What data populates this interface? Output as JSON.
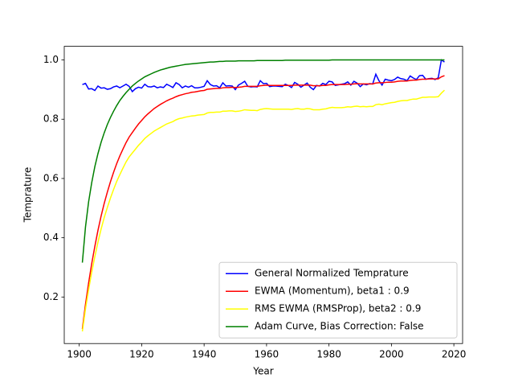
{
  "chart_data": {
    "type": "line",
    "x_label": "Year",
    "y_label": "Temprature",
    "legend_position": "lower right",
    "xlim": [
      1895.2,
      2022.8
    ],
    "ylim": [
      0.043,
      1.046
    ],
    "xticks": [
      1900,
      1920,
      1940,
      1960,
      1980,
      2000,
      2020
    ],
    "yticks": [
      0.2,
      0.4,
      0.6,
      0.8,
      {
        "value": 1,
        "label": "1.0"
      }
    ],
    "x": [
      1901,
      1902,
      1903,
      1904,
      1905,
      1906,
      1907,
      1908,
      1909,
      1910,
      1911,
      1912,
      1913,
      1914,
      1915,
      1916,
      1917,
      1918,
      1919,
      1920,
      1921,
      1922,
      1923,
      1924,
      1925,
      1926,
      1927,
      1928,
      1929,
      1930,
      1931,
      1932,
      1933,
      1934,
      1935,
      1936,
      1937,
      1938,
      1939,
      1940,
      1941,
      1942,
      1943,
      1944,
      1945,
      1946,
      1947,
      1948,
      1949,
      1950,
      1951,
      1952,
      1953,
      1954,
      1955,
      1956,
      1957,
      1958,
      1959,
      1960,
      1961,
      1962,
      1963,
      1964,
      1965,
      1966,
      1967,
      1968,
      1969,
      1970,
      1971,
      1972,
      1973,
      1974,
      1975,
      1976,
      1977,
      1978,
      1979,
      1980,
      1981,
      1982,
      1983,
      1984,
      1985,
      1986,
      1987,
      1988,
      1989,
      1990,
      1991,
      1992,
      1993,
      1994,
      1995,
      1996,
      1997,
      1998,
      1999,
      2000,
      2001,
      2002,
      2003,
      2004,
      2005,
      2006,
      2007,
      2008,
      2009,
      2010,
      2011,
      2012,
      2013,
      2014,
      2015,
      2016,
      2017
    ],
    "series": [
      {
        "name": "General Normalized Temprature",
        "color": "#0000ff",
        "values": [
          0.917,
          0.921,
          0.902,
          0.903,
          0.897,
          0.912,
          0.905,
          0.906,
          0.901,
          0.903,
          0.909,
          0.912,
          0.906,
          0.912,
          0.918,
          0.911,
          0.893,
          0.903,
          0.908,
          0.905,
          0.918,
          0.91,
          0.909,
          0.912,
          0.906,
          0.909,
          0.907,
          0.918,
          0.913,
          0.907,
          0.923,
          0.917,
          0.906,
          0.912,
          0.908,
          0.913,
          0.906,
          0.906,
          0.908,
          0.911,
          0.93,
          0.917,
          0.912,
          0.913,
          0.906,
          0.923,
          0.912,
          0.913,
          0.912,
          0.9,
          0.915,
          0.921,
          0.928,
          0.911,
          0.909,
          0.91,
          0.909,
          0.93,
          0.92,
          0.921,
          0.91,
          0.912,
          0.912,
          0.911,
          0.91,
          0.918,
          0.914,
          0.907,
          0.924,
          0.918,
          0.908,
          0.915,
          0.922,
          0.908,
          0.9,
          0.914,
          0.912,
          0.921,
          0.917,
          0.928,
          0.926,
          0.914,
          0.916,
          0.918,
          0.92,
          0.926,
          0.915,
          0.928,
          0.922,
          0.91,
          0.919,
          0.916,
          0.92,
          0.919,
          0.952,
          0.93,
          0.915,
          0.935,
          0.932,
          0.93,
          0.934,
          0.942,
          0.937,
          0.935,
          0.93,
          0.946,
          0.939,
          0.934,
          0.947,
          0.948,
          0.935,
          0.937,
          0.938,
          0.934,
          0.94,
          1.0,
          0.993
        ]
      },
      {
        "name": "EWMA (Momentum), beta1 : 0.9",
        "color": "#ff0000",
        "values": [
          0.092,
          0.175,
          0.247,
          0.313,
          0.371,
          0.425,
          0.473,
          0.516,
          0.554,
          0.589,
          0.621,
          0.65,
          0.676,
          0.699,
          0.721,
          0.74,
          0.755,
          0.77,
          0.784,
          0.796,
          0.808,
          0.818,
          0.827,
          0.836,
          0.843,
          0.85,
          0.856,
          0.862,
          0.867,
          0.871,
          0.876,
          0.88,
          0.883,
          0.886,
          0.888,
          0.891,
          0.892,
          0.894,
          0.896,
          0.897,
          0.901,
          0.902,
          0.903,
          0.904,
          0.904,
          0.906,
          0.907,
          0.907,
          0.908,
          0.907,
          0.908,
          0.909,
          0.911,
          0.911,
          0.911,
          0.911,
          0.911,
          0.913,
          0.914,
          0.915,
          0.914,
          0.914,
          0.914,
          0.914,
          0.914,
          0.914,
          0.914,
          0.914,
          0.915,
          0.915,
          0.915,
          0.915,
          0.915,
          0.915,
          0.913,
          0.913,
          0.913,
          0.914,
          0.914,
          0.916,
          0.917,
          0.917,
          0.917,
          0.917,
          0.917,
          0.918,
          0.918,
          0.919,
          0.92,
          0.919,
          0.919,
          0.919,
          0.919,
          0.919,
          0.922,
          0.923,
          0.923,
          0.924,
          0.925,
          0.925,
          0.926,
          0.928,
          0.929,
          0.929,
          0.929,
          0.931,
          0.932,
          0.932,
          0.934,
          0.935,
          0.935,
          0.936,
          0.936,
          0.936,
          0.936,
          0.943,
          0.947
        ]
      },
      {
        "name": "RMS EWMA (RMSProp), beta2 : 0.9",
        "color": "#ffff00",
        "values": [
          0.084,
          0.16,
          0.225,
          0.284,
          0.336,
          0.385,
          0.429,
          0.468,
          0.502,
          0.534,
          0.563,
          0.59,
          0.613,
          0.635,
          0.656,
          0.673,
          0.686,
          0.699,
          0.712,
          0.723,
          0.735,
          0.744,
          0.752,
          0.76,
          0.766,
          0.772,
          0.778,
          0.784,
          0.788,
          0.792,
          0.798,
          0.802,
          0.804,
          0.807,
          0.809,
          0.811,
          0.812,
          0.814,
          0.815,
          0.816,
          0.821,
          0.823,
          0.823,
          0.824,
          0.824,
          0.827,
          0.827,
          0.828,
          0.828,
          0.826,
          0.827,
          0.829,
          0.832,
          0.831,
          0.83,
          0.83,
          0.829,
          0.833,
          0.835,
          0.836,
          0.835,
          0.834,
          0.834,
          0.834,
          0.834,
          0.834,
          0.834,
          0.833,
          0.835,
          0.836,
          0.834,
          0.834,
          0.836,
          0.835,
          0.832,
          0.832,
          0.832,
          0.834,
          0.835,
          0.838,
          0.84,
          0.839,
          0.839,
          0.839,
          0.84,
          0.842,
          0.841,
          0.843,
          0.844,
          0.842,
          0.843,
          0.842,
          0.843,
          0.843,
          0.849,
          0.851,
          0.849,
          0.852,
          0.854,
          0.856,
          0.857,
          0.86,
          0.862,
          0.863,
          0.863,
          0.866,
          0.868,
          0.868,
          0.871,
          0.874,
          0.874,
          0.875,
          0.875,
          0.875,
          0.876,
          0.888,
          0.898
        ]
      },
      {
        "name": "Adam Curve, Bias Correction: False",
        "color": "#008000",
        "values": [
          0.316,
          0.436,
          0.521,
          0.586,
          0.64,
          0.684,
          0.722,
          0.754,
          0.782,
          0.806,
          0.827,
          0.846,
          0.863,
          0.877,
          0.89,
          0.901,
          0.912,
          0.921,
          0.929,
          0.936,
          0.943,
          0.948,
          0.953,
          0.958,
          0.962,
          0.966,
          0.969,
          0.972,
          0.975,
          0.977,
          0.979,
          0.981,
          0.983,
          0.985,
          0.986,
          0.987,
          0.988,
          0.989,
          0.99,
          0.991,
          0.992,
          0.993,
          0.993,
          0.994,
          0.995,
          0.995,
          0.996,
          0.996,
          0.996,
          0.996,
          0.997,
          0.997,
          0.997,
          0.997,
          0.997,
          0.997,
          0.998,
          0.998,
          0.998,
          0.998,
          0.998,
          0.998,
          0.998,
          0.998,
          0.998,
          0.999,
          0.999,
          0.999,
          0.999,
          0.999,
          0.999,
          0.999,
          0.999,
          0.999,
          0.999,
          0.999,
          0.999,
          0.999,
          0.999,
          0.999,
          1.0,
          1.0,
          1.0,
          1.0,
          1.0,
          1.0,
          1.0,
          1.0,
          1.0,
          1.0,
          1.0,
          1.0,
          1.0,
          1.0,
          1.0,
          1.0,
          1.0,
          1.0,
          1.0,
          1.0,
          1.0,
          1.0,
          1.0,
          1.0,
          1.0,
          1.0,
          1.0,
          1.0,
          1.0,
          1.0,
          1.0,
          1.0,
          1.0,
          1.0,
          1.0,
          1.0,
          1.0
        ]
      }
    ]
  }
}
